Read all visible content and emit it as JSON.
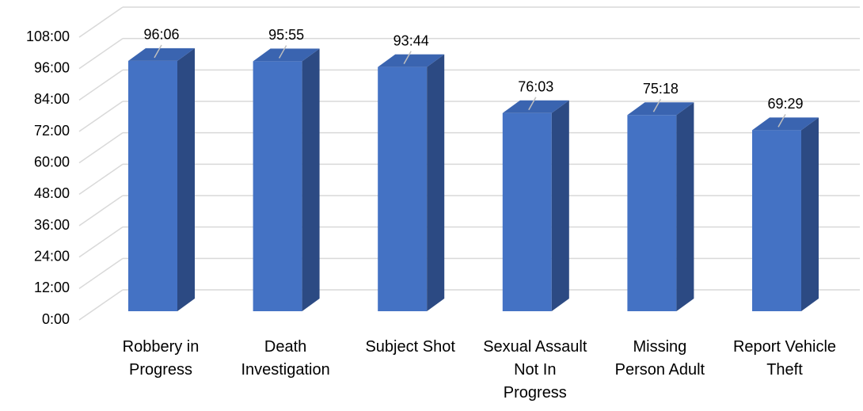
{
  "chart_data": {
    "type": "bar3d",
    "categories": [
      "Robbery in Progress",
      "Death Investigation",
      "Subject Shot",
      "Sexual Assault Not In Progress",
      "Missing Person Adult",
      "Report Vehicle Theft"
    ],
    "values": [
      96.1,
      95.9167,
      93.7333,
      76.05,
      75.3,
      69.4833
    ],
    "value_labels": [
      "96:06",
      "95:55",
      "93:44",
      "76:03",
      "75:18",
      "69:29"
    ],
    "color": "#4472c4",
    "ylim": [
      0,
      108
    ],
    "yticks": [
      {
        "value": 0,
        "label": "0:00"
      },
      {
        "value": 12,
        "label": "12:00"
      },
      {
        "value": 24,
        "label": "24:00"
      },
      {
        "value": 36,
        "label": "36:00"
      },
      {
        "value": 48,
        "label": "48:00"
      },
      {
        "value": 60,
        "label": "60:00"
      },
      {
        "value": 72,
        "label": "72:00"
      },
      {
        "value": 84,
        "label": "84:00"
      },
      {
        "value": 96,
        "label": "96:00"
      },
      {
        "value": 108,
        "label": "108:00"
      }
    ],
    "grid": true
  }
}
